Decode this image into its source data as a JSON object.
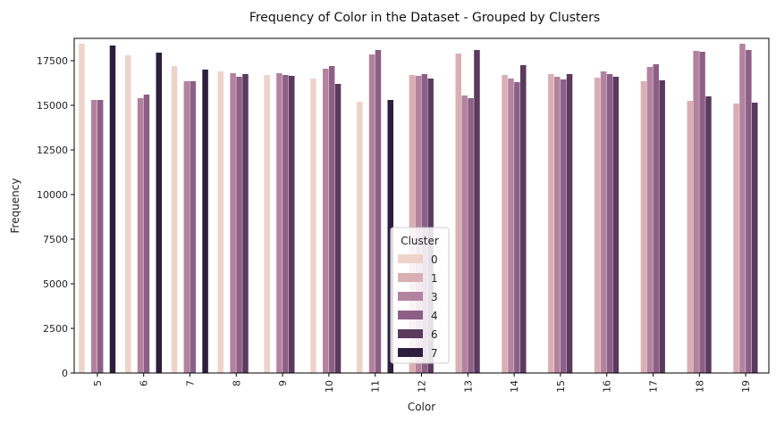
{
  "chart_data": {
    "type": "bar",
    "title": "Frequency of Color in the Dataset - Grouped by Clusters",
    "xlabel": "Color",
    "ylabel": "Frequency",
    "ylim": [
      0,
      18750
    ],
    "yticks": [
      0,
      2500,
      5000,
      7500,
      10000,
      12500,
      15000,
      17500
    ],
    "grid": false,
    "legend": {
      "title": "Cluster",
      "placement": "lower-center"
    },
    "categories": [
      "5",
      "6",
      "7",
      "8",
      "9",
      "10",
      "11",
      "12",
      "13",
      "14",
      "15",
      "16",
      "17",
      "18",
      "19"
    ],
    "series": [
      {
        "name": "0",
        "color": "#efd3cb",
        "values": [
          18450,
          17800,
          17200,
          16900,
          16700,
          16500,
          15200,
          null,
          null,
          null,
          null,
          null,
          null,
          null,
          null
        ]
      },
      {
        "name": "1",
        "color": "#d9afb3",
        "values": [
          null,
          null,
          null,
          null,
          null,
          null,
          null,
          16700,
          17900,
          16700,
          16750,
          16550,
          16350,
          15250,
          15100
        ]
      },
      {
        "name": "3",
        "color": "#b3829f",
        "values": [
          15300,
          15400,
          16350,
          16800,
          16800,
          17050,
          17850,
          16650,
          15550,
          16500,
          16600,
          16900,
          17150,
          18050,
          18450
        ]
      },
      {
        "name": "4",
        "color": "#8d5f87",
        "values": [
          15300,
          15600,
          16350,
          16600,
          16700,
          17200,
          18100,
          16750,
          15400,
          16300,
          16450,
          16750,
          17300,
          18000,
          18100
        ]
      },
      {
        "name": "6",
        "color": "#5b3a5e",
        "values": [
          null,
          null,
          null,
          16750,
          16650,
          16200,
          null,
          16500,
          18100,
          17250,
          16750,
          16600,
          16400,
          15500,
          15150
        ]
      },
      {
        "name": "7",
        "color": "#2d1e3e",
        "values": [
          18350,
          17950,
          17000,
          null,
          null,
          null,
          15300,
          null,
          null,
          null,
          null,
          null,
          null,
          null,
          null
        ]
      }
    ]
  }
}
